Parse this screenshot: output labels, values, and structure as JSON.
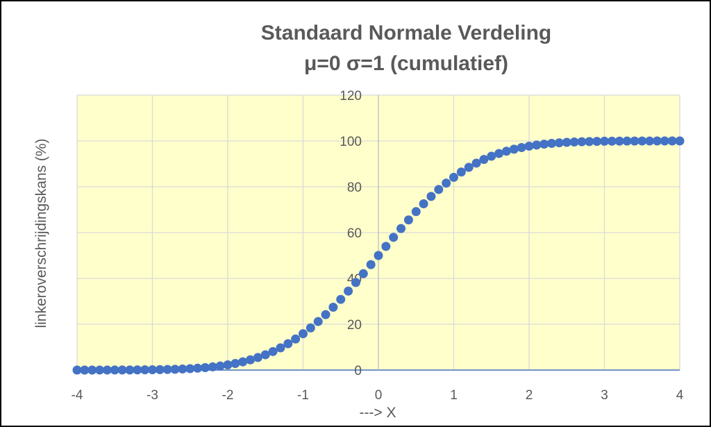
{
  "chart_data": {
    "type": "scatter",
    "title": "Standaard Normale Verdeling",
    "subtitle": "μ=0  σ=1 (cumulatief)",
    "xlabel": "---> X",
    "ylabel": "linkeroverschrijdingskans (%)",
    "xlim": [
      -4,
      4
    ],
    "ylim": [
      0,
      120
    ],
    "xticks": [
      "-4",
      "-3",
      "-2",
      "-1",
      "0",
      "1",
      "2",
      "3",
      "4"
    ],
    "yticks": [
      "0",
      "20",
      "40",
      "60",
      "80",
      "100",
      "120"
    ],
    "grid": true,
    "legend": "none",
    "series": [
      {
        "x": [
          -4.0,
          -3.9,
          -3.8,
          -3.7,
          -3.6,
          -3.5,
          -3.4,
          -3.3,
          -3.2,
          -3.1,
          -3.0,
          -2.9,
          -2.8,
          -2.7,
          -2.6,
          -2.5,
          -2.4,
          -2.3,
          -2.2,
          -2.1,
          -2.0,
          -1.9,
          -1.8,
          -1.7,
          -1.6,
          -1.5,
          -1.4,
          -1.3,
          -1.2,
          -1.1,
          -1.0,
          -0.9,
          -0.8,
          -0.7,
          -0.6,
          -0.5,
          -0.4,
          -0.3,
          -0.2,
          -0.1,
          0.0,
          0.1,
          0.2,
          0.3,
          0.4,
          0.5,
          0.6,
          0.7,
          0.8,
          0.9,
          1.0,
          1.1,
          1.2,
          1.3,
          1.4,
          1.5,
          1.6,
          1.7,
          1.8,
          1.9,
          2.0,
          2.1,
          2.2,
          2.3,
          2.4,
          2.5,
          2.6,
          2.7,
          2.8,
          2.9,
          3.0,
          3.1,
          3.2,
          3.3,
          3.4,
          3.5,
          3.6,
          3.7,
          3.8,
          3.9,
          4.0
        ],
        "y": [
          0.003,
          0.005,
          0.007,
          0.011,
          0.016,
          0.023,
          0.034,
          0.048,
          0.069,
          0.097,
          0.13,
          0.19,
          0.26,
          0.35,
          0.47,
          0.62,
          0.82,
          1.07,
          1.39,
          1.79,
          2.28,
          2.87,
          3.59,
          4.46,
          5.48,
          6.68,
          8.08,
          9.68,
          11.51,
          13.57,
          15.87,
          18.41,
          21.19,
          24.2,
          27.43,
          30.85,
          34.46,
          38.21,
          42.07,
          46.02,
          50.0,
          53.98,
          57.93,
          61.79,
          65.54,
          69.15,
          72.57,
          75.8,
          78.81,
          81.59,
          84.13,
          86.43,
          88.49,
          90.32,
          91.92,
          93.32,
          94.52,
          95.54,
          96.41,
          97.13,
          97.72,
          98.21,
          98.61,
          98.93,
          99.18,
          99.38,
          99.53,
          99.65,
          99.74,
          99.81,
          99.87,
          99.9,
          99.93,
          99.95,
          99.97,
          99.98,
          99.98,
          99.99,
          99.99,
          100.0,
          100.0
        ]
      }
    ]
  },
  "style": {
    "plot_bg": "#ffffcc",
    "marker_color": "#4472c4",
    "grid_color": "#d9d9d9",
    "axis_color": "#4472c4",
    "text_color": "#595959"
  }
}
